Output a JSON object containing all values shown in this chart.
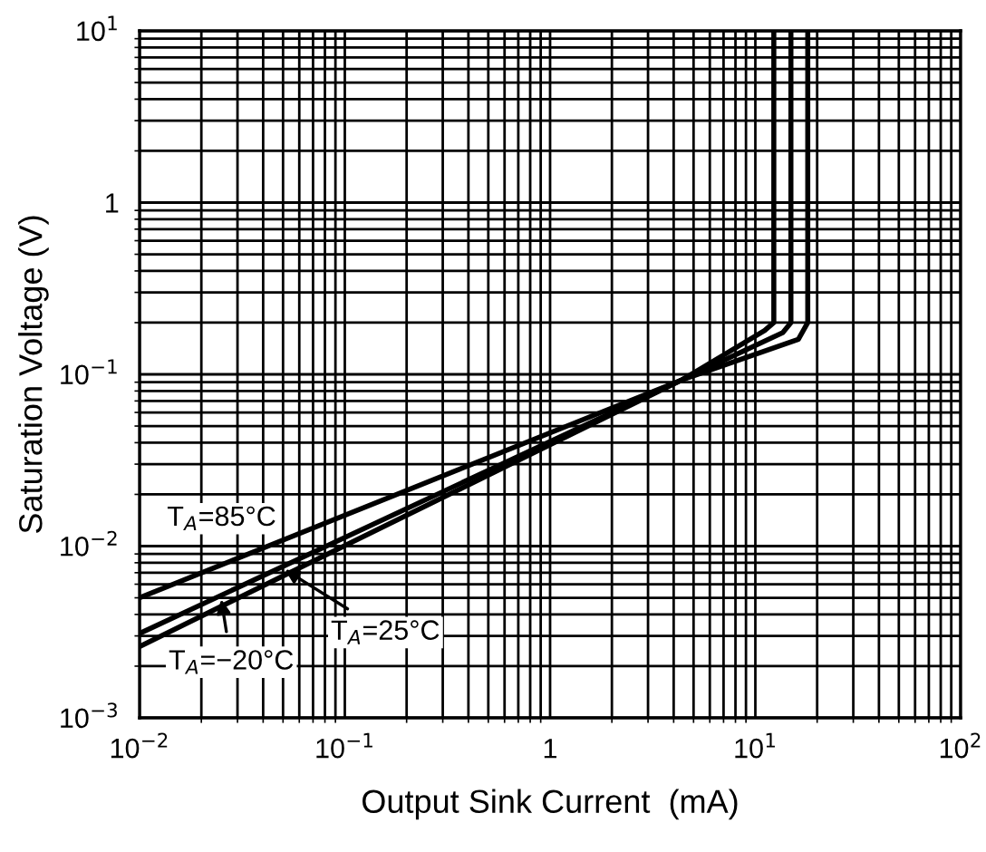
{
  "chart_data": {
    "type": "line",
    "xlabel": "Output Sink Current  (mA)",
    "ylabel": "Saturation Voltage (V)",
    "log": "xy",
    "grid": true,
    "line_style": "solid",
    "marker": "none",
    "xlim": [
      0.01,
      100
    ],
    "ylim": [
      0.001,
      10
    ],
    "xticks": [
      {
        "value": 0.01,
        "label": "10$^{−2}$"
      },
      {
        "value": 0.1,
        "label": "10$^{−1}$"
      },
      1,
      {
        "value": 10,
        "label": "10$^{1}$"
      },
      {
        "value": 100,
        "label": "10$^{2}$"
      }
    ],
    "yticks": [
      {
        "value": 0.001,
        "label": "10$^{−3}$"
      },
      {
        "value": 0.01,
        "label": "10$^{−2}$"
      },
      {
        "value": 0.1,
        "label": "10$^{−1}$"
      },
      1,
      {
        "value": 10,
        "label": "10$^{1}$"
      }
    ],
    "series": [
      {
        "color": "#000000",
        "x": [
          0.01,
          4.4,
          16.2,
          18,
          18
        ],
        "values": [
          0.005,
          0.093,
          0.16,
          0.2,
          10
        ]
      },
      {
        "color": "#000000",
        "x": [
          0.01,
          4.4,
          13.6,
          14.9,
          14.9
        ],
        "values": [
          0.0031,
          0.093,
          0.175,
          0.2,
          10
        ]
      },
      {
        "color": "#000000",
        "x": [
          0.01,
          4.4,
          11.1,
          12.3,
          12.3
        ],
        "values": [
          0.0026,
          0.093,
          0.18,
          0.2,
          10
        ]
      }
    ],
    "annotations": [
      "T$_{A}$=85°C",
      {
        "text": "T$_{A}$=25°C",
        "x": 0.051,
        "y": 0.0073
      },
      {
        "text": "T$_{A}$=−20°C",
        "x": 0.025,
        "y": 0.0049
      }
    ]
  }
}
